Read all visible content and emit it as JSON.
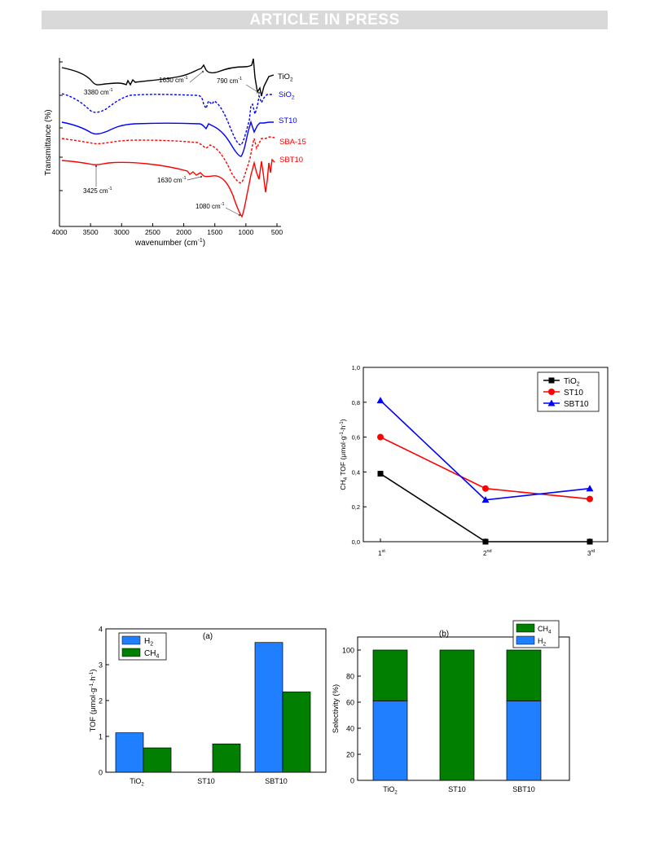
{
  "header": {
    "banner": "ARTICLE IN PRESS"
  },
  "colors": {
    "black": "#000000",
    "blue": "#0000ff",
    "red": "#ff0000",
    "bar_blue": "#1f7fff",
    "bar_green": "#007f00"
  },
  "chart_data": [
    {
      "type": "line",
      "panel": "ftir",
      "xlabel": "wavenumber (cm",
      "xlabel_sup": "-1",
      "xlabel_end": ")",
      "ylabel": "Transmittance (%)",
      "xlim": [
        4000,
        500
      ],
      "x_ticks": [
        "4000",
        "3500",
        "3000",
        "2500",
        "2000",
        "1500",
        "1000",
        "500"
      ],
      "series": [
        {
          "name": "TiO",
          "sub": "2",
          "color": "#000000",
          "dash": false
        },
        {
          "name": "SiO",
          "sub": "2",
          "color": "#0000ff",
          "dash": true
        },
        {
          "name": "ST10",
          "sub": "",
          "color": "#0000ff",
          "dash": false
        },
        {
          "name": "SBA-15",
          "sub": "",
          "color": "#ff0000",
          "dash": true
        },
        {
          "name": "SBT10",
          "sub": "",
          "color": "#ff0000",
          "dash": false
        }
      ],
      "annotations": [
        {
          "text": "3380 cm",
          "sup": "-1"
        },
        {
          "text": "1630 cm",
          "sup": "-1"
        },
        {
          "text": "790 cm",
          "sup": "-1"
        },
        {
          "text": "3425 cm",
          "sup": "-1"
        },
        {
          "text": "1630 cm",
          "sup": "-1"
        },
        {
          "text": "1080 cm",
          "sup": "-1"
        }
      ]
    },
    {
      "type": "line",
      "panel": "ch4_tof",
      "ylabel_main": "CH",
      "ylabel_sub": "4",
      "ylabel_rest": " TOF (μmol·g",
      "ylabel_sup1": "-1",
      "ylabel_mid": "·h",
      "ylabel_sup2": "-1",
      "ylabel_end": ")",
      "ylim": [
        0,
        1.0
      ],
      "y_ticks": [
        "0,0",
        "0,2",
        "0,4",
        "0,6",
        "0,8",
        "1,0"
      ],
      "categories": [
        {
          "base": "1",
          "sup": "st"
        },
        {
          "base": "2",
          "sup": "nd"
        },
        {
          "base": "3",
          "sup": "rd"
        }
      ],
      "series": [
        {
          "name": "TiO",
          "sub": "2",
          "color": "#000000",
          "marker": "square",
          "values": [
            0.39,
            0.0,
            0.0
          ]
        },
        {
          "name": "ST10",
          "sub": "",
          "color": "#ff0000",
          "marker": "circle",
          "values": [
            0.6,
            0.305,
            0.245
          ]
        },
        {
          "name": "SBT10",
          "sub": "",
          "color": "#0000ff",
          "marker": "triangle",
          "values": [
            0.81,
            0.24,
            0.305
          ]
        }
      ],
      "legend": "top-right"
    },
    {
      "type": "bar",
      "panel_label": "(a)",
      "ylabel": "TOF (μmol·g",
      "ylabel_sup1": "-1",
      "ylabel_mid": "·h",
      "ylabel_sup2": "-1",
      "ylabel_end": ")",
      "ylim": [
        0,
        4
      ],
      "y_ticks": [
        "0",
        "1",
        "2",
        "3",
        "4"
      ],
      "categories": [
        {
          "base": "TiO",
          "sub": "2"
        },
        {
          "base": "ST10",
          "sub": ""
        },
        {
          "base": "SBT10",
          "sub": ""
        }
      ],
      "series": [
        {
          "name": "H",
          "sub": "2",
          "color": "#1f7fff",
          "values": [
            1.1,
            0,
            3.62
          ]
        },
        {
          "name": "CH",
          "sub": "4",
          "color": "#007f00",
          "values": [
            0.68,
            0.79,
            2.24
          ]
        }
      ],
      "legend": "top-left"
    },
    {
      "type": "bar",
      "stacked": true,
      "panel_label": "(b)",
      "ylabel": "Selectivity (%)",
      "ylim": [
        0,
        110
      ],
      "y_ticks": [
        "0",
        "20",
        "40",
        "60",
        "80",
        "100"
      ],
      "categories": [
        {
          "base": "TiO",
          "sub": "2"
        },
        {
          "base": "ST10",
          "sub": ""
        },
        {
          "base": "SBT10",
          "sub": ""
        }
      ],
      "series": [
        {
          "name": "H",
          "sub": "2",
          "color": "#1f7fff",
          "values": [
            61,
            0,
            61
          ]
        },
        {
          "name": "CH",
          "sub": "4",
          "color": "#007f00",
          "values": [
            39,
            100,
            39
          ]
        }
      ],
      "legend": "top-right"
    }
  ]
}
